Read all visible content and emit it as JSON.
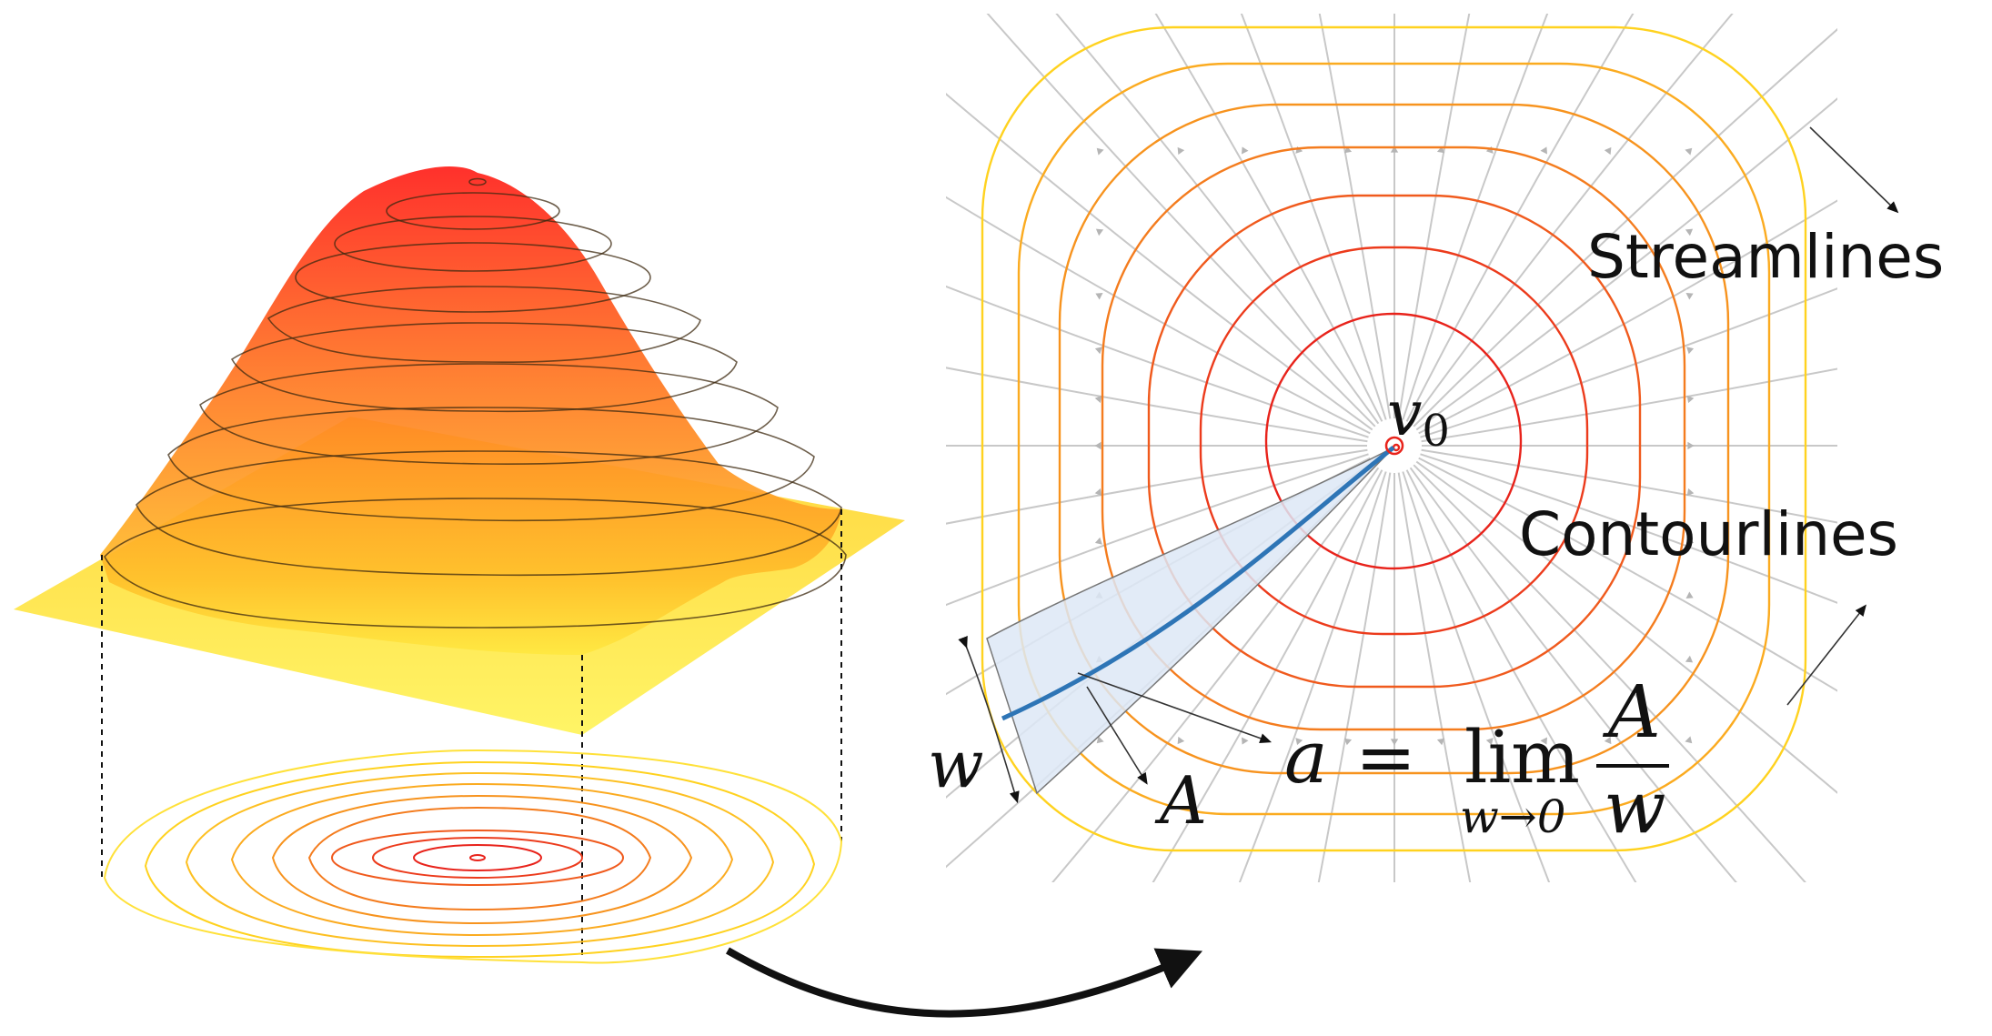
{
  "labels": {
    "streamlines": "Streamlines",
    "contourlines": "Contourlines",
    "source_symbol": "v",
    "source_subscript": "0",
    "width_symbol": "w",
    "area_symbol": "A"
  },
  "formula": {
    "lhs": "a",
    "equals": "=",
    "lim": "lim",
    "lim_sub": "w→0",
    "numerator": "A",
    "denominator": "w"
  },
  "colors": {
    "contour_inner": "#e8231b",
    "contour_mid": "#f7931e",
    "contour_outer": "#ffd21f",
    "streamline": "#c8c8c8",
    "highlight_curve": "#2e75b6",
    "area_fill": "#dde8f6",
    "surface_top": "#ff2a1a",
    "surface_bottom": "#fff25a"
  },
  "icons": [
    "arrow-icon"
  ]
}
